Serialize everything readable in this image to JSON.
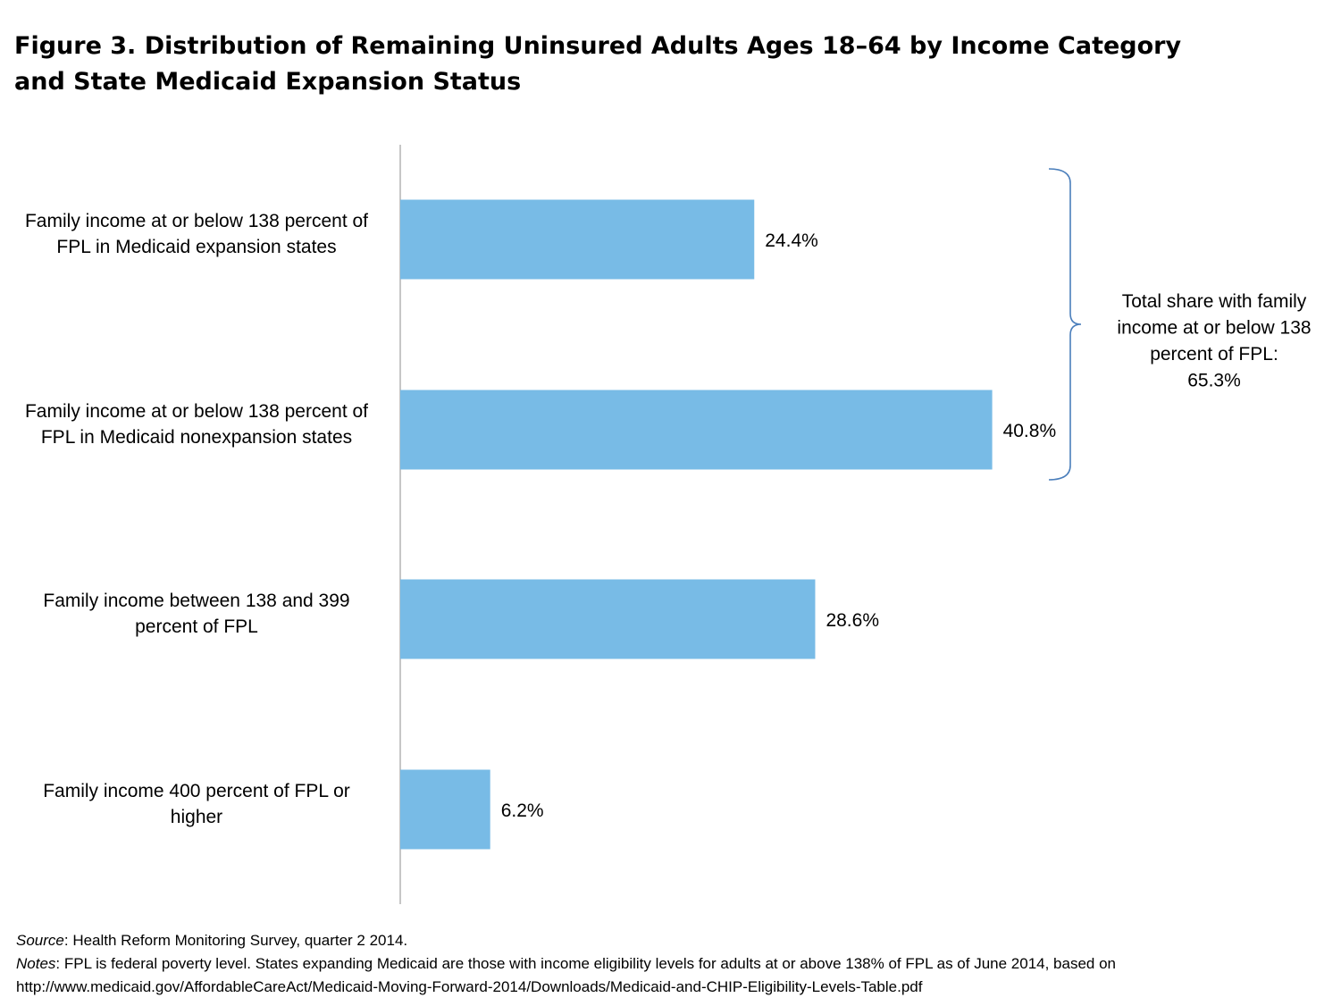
{
  "title": {
    "line1": "Figure 3. Distribution  of Remaining Uninsured Adults Ages 18–64 by Income Category",
    "line2": "and State Medicaid Expansion Status"
  },
  "chart_data": {
    "type": "bar",
    "orientation": "horizontal",
    "categories": [
      [
        "Family income at or below 138 percent of",
        "FPL in Medicaid expansion states"
      ],
      [
        "Family income at or below 138 percent of",
        "FPL in Medicaid nonexpansion states"
      ],
      [
        "Family income between 138 and 399",
        "percent of FPL"
      ],
      [
        "Family income 400 percent of FPL or",
        "higher"
      ]
    ],
    "values": [
      24.4,
      40.8,
      28.6,
      6.2
    ],
    "value_labels": [
      "24.4%",
      "40.8%",
      "28.6%",
      "6.2%"
    ],
    "xlim": [
      0,
      50
    ],
    "grid": false,
    "bar_color": "#78bbe6",
    "annotation": {
      "lines": [
        "Total share with family",
        "income at or below 138",
        "percent of FPL:",
        "65.3%"
      ],
      "brace_color": "#4a7ebb"
    }
  },
  "footer": {
    "source_label": "Source",
    "source_text": ": Health Reform Monitoring Survey, quarter 2 2014.",
    "notes_label": "Notes",
    "notes_text": ": FPL is federal poverty level. States expanding Medicaid are those with income eligibility levels for adults at or above 138% of FPL as of  June 2014, based on",
    "notes_url": "http://www.medicaid.gov/AffordableCareAct/Medicaid-Moving-Forward-2014/Downloads/Medicaid-and-CHIP-Eligibility-Levels-Table.pdf"
  }
}
